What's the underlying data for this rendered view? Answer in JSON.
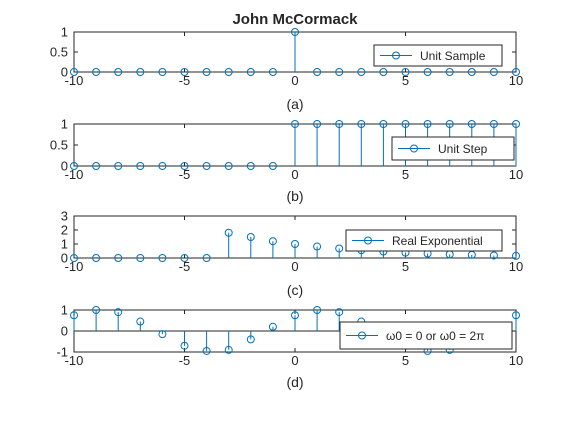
{
  "figure_title": "John McCormack",
  "colors": {
    "series": "#0072BD",
    "axes": "#262626",
    "background": "#ffffff"
  },
  "chart_data": [
    {
      "type": "stem",
      "panel_label": "(a)",
      "legend": "Unit Sample",
      "legend_location": "top-right",
      "x": [
        -10,
        -9,
        -8,
        -7,
        -6,
        -5,
        -4,
        -3,
        -2,
        -1,
        0,
        1,
        2,
        3,
        4,
        5,
        6,
        7,
        8,
        9,
        10
      ],
      "values": [
        0,
        0,
        0,
        0,
        0,
        0,
        0,
        0,
        0,
        0,
        1,
        0,
        0,
        0,
        0,
        0,
        0,
        0,
        0,
        0,
        0
      ],
      "xlim": [
        -10,
        10
      ],
      "ylim": [
        0,
        1
      ],
      "xticks": [
        -10,
        -5,
        0,
        5,
        10
      ],
      "yticks": [
        0,
        0.5,
        1
      ]
    },
    {
      "type": "stem",
      "panel_label": "(b)",
      "legend": "Unit Step",
      "legend_location": "right",
      "x": [
        -10,
        -9,
        -8,
        -7,
        -6,
        -5,
        -4,
        -3,
        -2,
        -1,
        0,
        1,
        2,
        3,
        4,
        5,
        6,
        7,
        8,
        9,
        10
      ],
      "values": [
        0,
        0,
        0,
        0,
        0,
        0,
        0,
        0,
        0,
        0,
        1,
        1,
        1,
        1,
        1,
        1,
        1,
        1,
        1,
        1,
        1
      ],
      "xlim": [
        -10,
        10
      ],
      "ylim": [
        0,
        1
      ],
      "xticks": [
        -10,
        -5,
        0,
        5,
        10
      ],
      "yticks": [
        0,
        0.5,
        1
      ]
    },
    {
      "type": "stem",
      "panel_label": "(c)",
      "legend": "Real Exponential",
      "legend_location": "top-right",
      "x": [
        -10,
        -9,
        -8,
        -7,
        -6,
        -5,
        -4,
        -3,
        -2,
        -1,
        0,
        1,
        2,
        3,
        4,
        5,
        6,
        7,
        8,
        9,
        10
      ],
      "values": [
        0,
        0,
        0,
        0,
        0,
        0,
        0,
        1.8,
        1.5,
        1.2,
        1,
        0.82,
        0.68,
        0.56,
        0.46,
        0.38,
        0.32,
        0.26,
        0.22,
        0.18,
        0.15
      ],
      "xlim": [
        -10,
        10
      ],
      "ylim": [
        0,
        3
      ],
      "xticks": [
        -10,
        -5,
        0,
        5,
        10
      ],
      "yticks": [
        0,
        1,
        2,
        3
      ]
    },
    {
      "type": "stem",
      "panel_label": "(d)",
      "legend": "ω0 = 0 or ω0 = 2π",
      "legend_location": "bottom-right",
      "x": [
        -10,
        -9,
        -8,
        -7,
        -6,
        -5,
        -4,
        -3,
        -2,
        -1,
        0,
        1,
        2,
        3,
        4,
        5,
        6,
        7,
        8,
        9,
        10
      ],
      "values": [
        0.75,
        1,
        0.9,
        0.45,
        -0.15,
        -0.7,
        -0.95,
        -0.9,
        -0.4,
        0.2,
        0.75,
        1,
        0.9,
        0.45,
        -0.15,
        -0.7,
        -0.95,
        -0.9,
        -0.4,
        0.2,
        0.75
      ],
      "xlim": [
        -10,
        10
      ],
      "ylim": [
        -1,
        1
      ],
      "xticks": [
        -10,
        -5,
        0,
        5,
        10
      ],
      "yticks": [
        -1,
        0,
        1
      ]
    }
  ]
}
